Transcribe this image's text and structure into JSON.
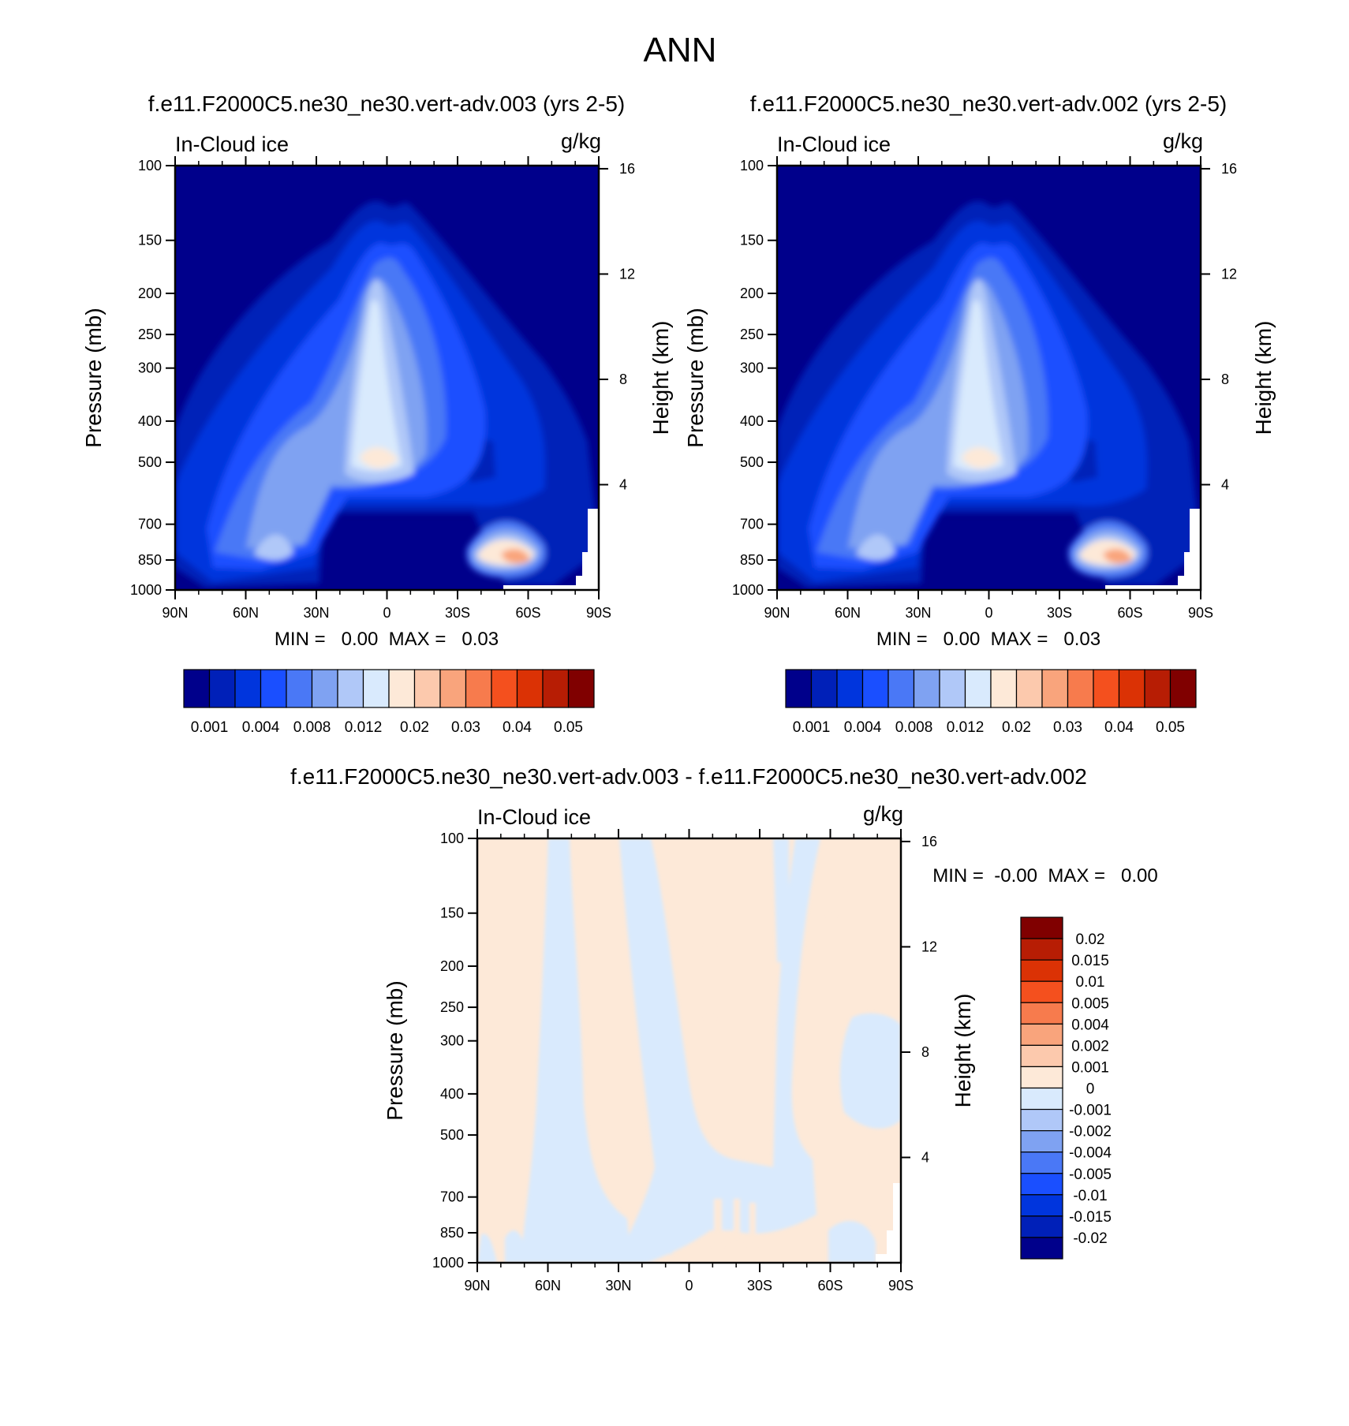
{
  "chart_data": {
    "title": "ANN",
    "type": "heatmap",
    "panels": [
      {
        "id": "panel-1",
        "title": "f.e11.F2000C5.ne30_ne30.vert-adv.003 (yrs 2-5)",
        "variable": "In-Cloud ice",
        "units": "g/kg",
        "ylabel": "Pressure (mb)",
        "ylabel_right": "Height (km)",
        "minmax_text": "MIN =   0.00  MAX =   0.03",
        "min": 0.0,
        "max": 0.03,
        "x_ticks": [
          "90N",
          "60N",
          "30N",
          "0",
          "30S",
          "60S",
          "90S"
        ],
        "y_ticks": [
          "100",
          "150",
          "200",
          "250",
          "300",
          "400",
          "500",
          "700",
          "850",
          "1000"
        ],
        "y_values": [
          100,
          150,
          200,
          250,
          300,
          400,
          500,
          700,
          850,
          1000
        ],
        "height_ticks": [
          "16",
          "12",
          "8",
          "4"
        ],
        "height_values": [
          16,
          12,
          8,
          4
        ],
        "contour_levels": [
          0.001,
          0.002,
          0.004,
          0.006,
          0.008,
          0.01,
          0.012,
          0.015,
          0.02,
          0.025,
          0.03,
          0.035,
          0.04,
          0.045,
          0.05
        ],
        "colorbar_labels": [
          "0.001",
          "0.004",
          "0.008",
          "0.012",
          "0.02",
          "0.03",
          "0.04",
          "0.05"
        ],
        "colors": [
          "#00008b",
          "#0020b8",
          "#0035dd",
          "#1a4fff",
          "#4a78f6",
          "#7fa2f2",
          "#b0c8f8",
          "#d9eafd",
          "#fde9d8",
          "#fcc9ad",
          "#f9a47c",
          "#f77b4d",
          "#f4501e",
          "#db3205",
          "#b71d04",
          "#800000"
        ]
      },
      {
        "id": "panel-2",
        "title": "f.e11.F2000C5.ne30_ne30.vert-adv.002 (yrs 2-5)",
        "variable": "In-Cloud ice",
        "units": "g/kg",
        "ylabel": "Pressure (mb)",
        "ylabel_right": "Height (km)",
        "minmax_text": "MIN =   0.00  MAX =   0.03",
        "min": 0.0,
        "max": 0.03,
        "x_ticks": [
          "90N",
          "60N",
          "30N",
          "0",
          "30S",
          "60S",
          "90S"
        ],
        "y_ticks": [
          "100",
          "150",
          "200",
          "250",
          "300",
          "400",
          "500",
          "700",
          "850",
          "1000"
        ],
        "y_values": [
          100,
          150,
          200,
          250,
          300,
          400,
          500,
          700,
          850,
          1000
        ],
        "height_ticks": [
          "16",
          "12",
          "8",
          "4"
        ],
        "height_values": [
          16,
          12,
          8,
          4
        ],
        "contour_levels": [
          0.001,
          0.002,
          0.004,
          0.006,
          0.008,
          0.01,
          0.012,
          0.015,
          0.02,
          0.025,
          0.03,
          0.035,
          0.04,
          0.045,
          0.05
        ],
        "colorbar_labels": [
          "0.001",
          "0.004",
          "0.008",
          "0.012",
          "0.02",
          "0.03",
          "0.04",
          "0.05"
        ],
        "colors": [
          "#00008b",
          "#0020b8",
          "#0035dd",
          "#1a4fff",
          "#4a78f6",
          "#7fa2f2",
          "#b0c8f8",
          "#d9eafd",
          "#fde9d8",
          "#fcc9ad",
          "#f9a47c",
          "#f77b4d",
          "#f4501e",
          "#db3205",
          "#b71d04",
          "#800000"
        ]
      },
      {
        "id": "panel-diff",
        "title": "f.e11.F2000C5.ne30_ne30.vert-adv.003 - f.e11.F2000C5.ne30_ne30.vert-adv.002",
        "variable": "In-Cloud ice",
        "units": "g/kg",
        "ylabel": "Pressure (mb)",
        "ylabel_right": "Height (km)",
        "minmax_text": "MIN =  -0.00  MAX =   0.00",
        "min": -0.0,
        "max": 0.0,
        "x_ticks": [
          "90N",
          "60N",
          "30N",
          "0",
          "30S",
          "60S",
          "90S"
        ],
        "y_ticks": [
          "100",
          "150",
          "200",
          "250",
          "300",
          "400",
          "500",
          "700",
          "850",
          "1000"
        ],
        "y_values": [
          100,
          150,
          200,
          250,
          300,
          400,
          500,
          700,
          850,
          1000
        ],
        "height_ticks": [
          "16",
          "12",
          "8",
          "4"
        ],
        "height_values": [
          16,
          12,
          8,
          4
        ],
        "colorbar_labels": [
          "0.02",
          "0.015",
          "0.01",
          "0.005",
          "0.004",
          "0.002",
          "0.001",
          "0",
          "-0.001",
          "-0.002",
          "-0.004",
          "-0.005",
          "-0.01",
          "-0.015",
          "-0.02"
        ],
        "colors": [
          "#800000",
          "#b71d04",
          "#db3205",
          "#f4501e",
          "#f77b4d",
          "#f9a47c",
          "#fcc9ad",
          "#fde9d8",
          "#d9eafd",
          "#b0c8f8",
          "#7fa2f2",
          "#4a78f6",
          "#1a4fff",
          "#0035dd",
          "#0020b8",
          "#00008b"
        ]
      }
    ]
  }
}
